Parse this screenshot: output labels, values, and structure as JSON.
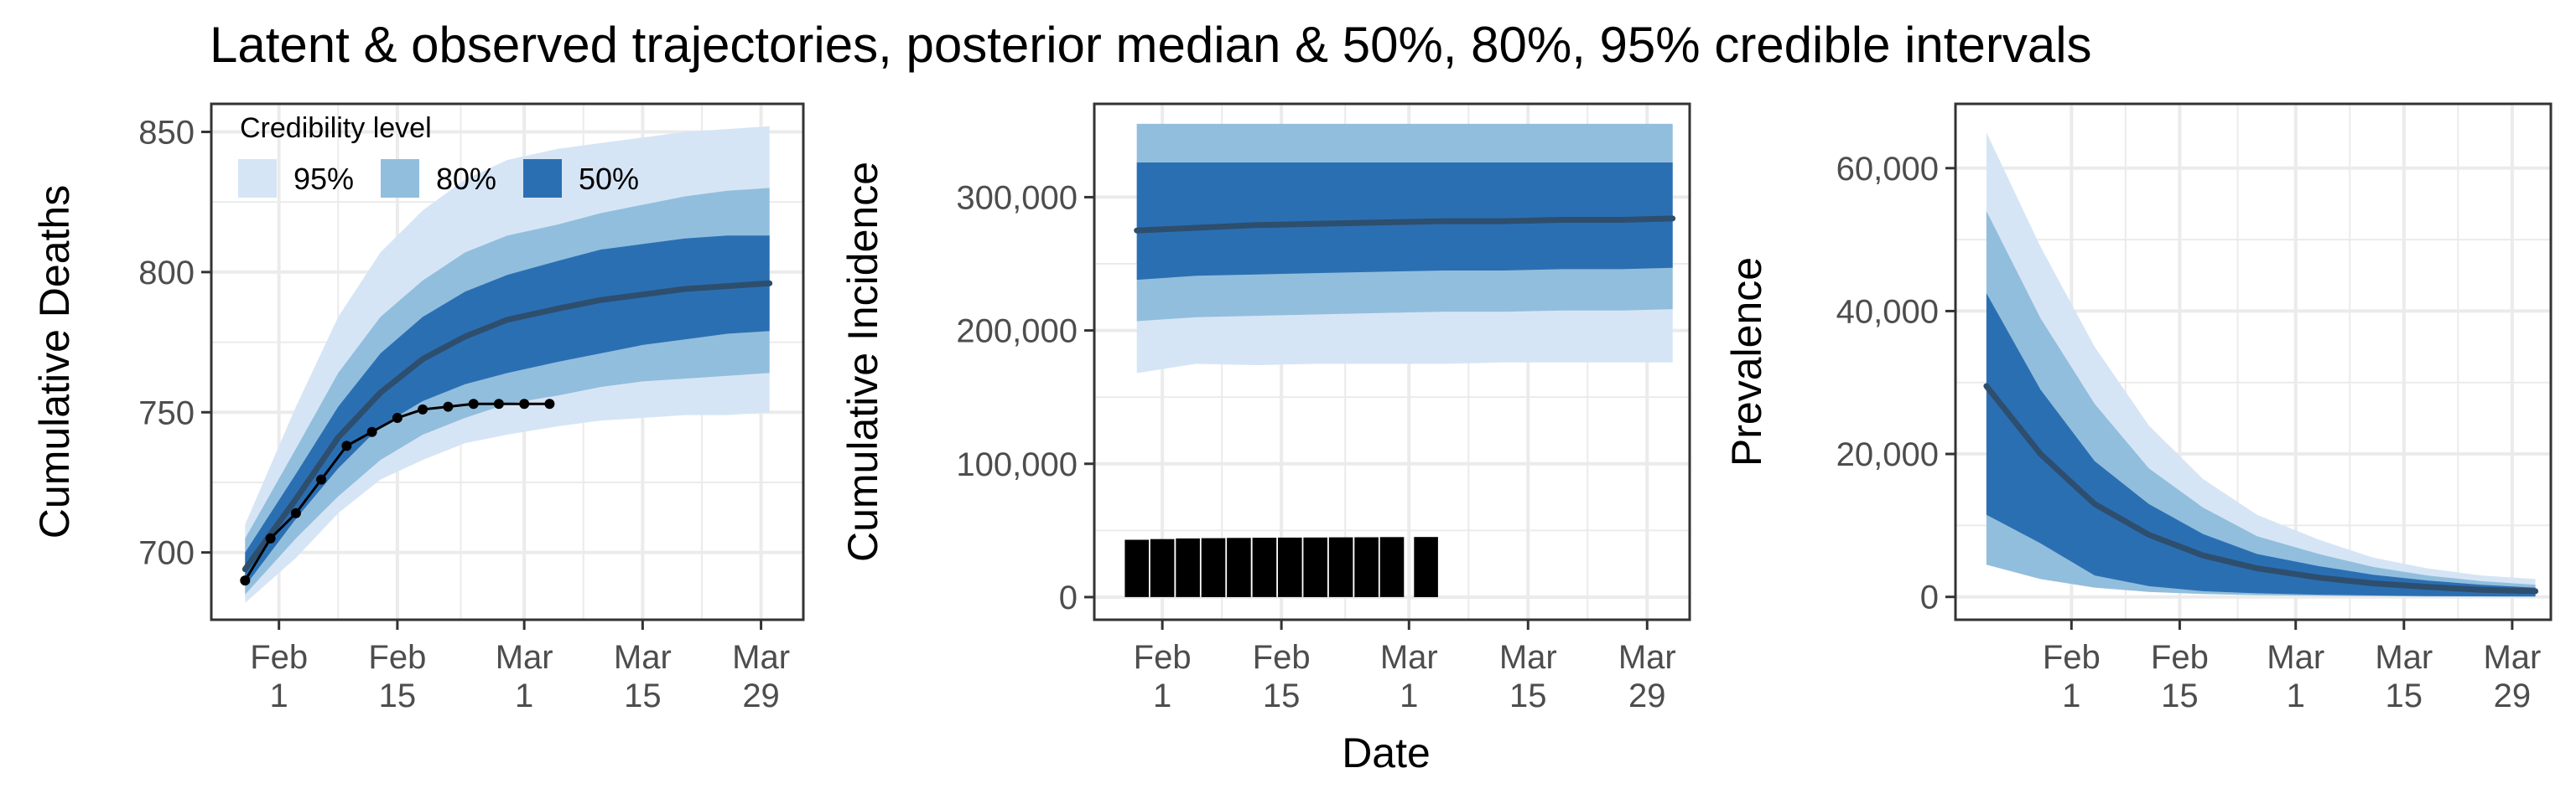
{
  "figure": {
    "title": "Latent & observed trajectories, posterior median & 50%, 80%, 95% credible intervals",
    "shared_xlabel": "Date"
  },
  "legend": {
    "title": "Credibility level",
    "items": [
      {
        "label": "95%",
        "color": "#d6e5f5"
      },
      {
        "label": "80%",
        "color": "#92bedd"
      },
      {
        "label": "50%",
        "color": "#2b6fb3"
      }
    ],
    "placement": "top-left inside first panel"
  },
  "colors": {
    "band95": "#d6e5f5",
    "band80": "#92bedd",
    "band50": "#2b6fb3",
    "median": "#2e4e6e",
    "observed": "#000000",
    "grid": "#ebebeb",
    "axis": "#333333"
  },
  "chart_data": [
    {
      "type": "line",
      "ylabel": "Cumulative Deaths",
      "xlabel": "",
      "x_ticks": [
        {
          "date": "Feb 1",
          "label": [
            "Feb",
            "1"
          ]
        },
        {
          "date": "Feb 15",
          "label": [
            "Feb",
            "15"
          ]
        },
        {
          "date": "Mar 1",
          "label": [
            "Mar",
            "1"
          ]
        },
        {
          "date": "Mar 15",
          "label": [
            "Mar",
            "15"
          ]
        },
        {
          "date": "Mar 29",
          "label": [
            "Mar",
            "29"
          ]
        }
      ],
      "xlim": [
        "Jan 24",
        "Apr 3"
      ],
      "ylim": [
        676,
        860
      ],
      "y_ticks": [
        {
          "value": 700,
          "label": "700"
        },
        {
          "value": 750,
          "label": "750"
        },
        {
          "value": 800,
          "label": "800"
        },
        {
          "value": 850,
          "label": "850"
        }
      ],
      "grid": true,
      "x": [
        "Jan 28",
        "Feb 3",
        "Feb 8",
        "Feb 13",
        "Feb 18",
        "Feb 23",
        "Feb 28",
        "Mar 5",
        "Mar 10",
        "Mar 15",
        "Mar 20",
        "Mar 25",
        "Mar 30"
      ],
      "bands": {
        "95": {
          "lower": [
            682,
            698,
            714,
            726,
            733,
            739,
            742,
            745,
            747,
            748,
            749,
            749,
            750
          ],
          "upper": [
            710,
            752,
            784,
            807,
            822,
            833,
            840,
            844,
            846,
            848,
            850,
            851,
            852
          ]
        },
        "80": {
          "lower": [
            685,
            705,
            720,
            733,
            742,
            748,
            753,
            756,
            759,
            761,
            762,
            763,
            764
          ],
          "upper": [
            705,
            737,
            764,
            784,
            797,
            807,
            813,
            817,
            821,
            824,
            827,
            829,
            830
          ]
        },
        "50": {
          "lower": [
            688,
            712,
            730,
            745,
            754,
            760,
            764,
            768,
            771,
            774,
            776,
            778,
            779
          ],
          "upper": [
            700,
            728,
            752,
            771,
            784,
            793,
            799,
            804,
            808,
            810,
            812,
            813,
            813
          ]
        }
      },
      "median": [
        694,
        719,
        741,
        757,
        769,
        777,
        783,
        787,
        790,
        792,
        794,
        795,
        796
      ],
      "observed": {
        "x": [
          "Jan 28",
          "Jan 31",
          "Feb 3",
          "Feb 6",
          "Feb 9",
          "Feb 12",
          "Feb 15",
          "Feb 18",
          "Feb 21",
          "Feb 24",
          "Feb 27",
          "Mar 1",
          "Mar 4"
        ],
        "y": [
          690,
          705,
          714,
          726,
          738,
          743,
          748,
          751,
          752,
          753,
          753,
          753,
          753
        ]
      }
    },
    {
      "type": "area",
      "ylabel": "Cumulative Incidence",
      "xlabel": "Date",
      "x_ticks": [
        {
          "date": "Feb 1",
          "label": [
            "Feb",
            "1"
          ]
        },
        {
          "date": "Feb 15",
          "label": [
            "Feb",
            "15"
          ]
        },
        {
          "date": "Mar 1",
          "label": [
            "Mar",
            "1"
          ]
        },
        {
          "date": "Mar 15",
          "label": [
            "Mar",
            "15"
          ]
        },
        {
          "date": "Mar 29",
          "label": [
            "Mar",
            "29"
          ]
        }
      ],
      "xlim": [
        "Jan 24",
        "Apr 3"
      ],
      "ylim": [
        -17000,
        370000
      ],
      "y_ticks": [
        {
          "value": 0,
          "label": "0"
        },
        {
          "value": 100000,
          "label": "100,000"
        },
        {
          "value": 200000,
          "label": "200,000"
        },
        {
          "value": 300000,
          "label": "300,000"
        }
      ],
      "grid": true,
      "x": [
        "Jan 29",
        "Feb 5",
        "Feb 12",
        "Feb 19",
        "Feb 26",
        "Mar 5",
        "Mar 12",
        "Mar 19",
        "Mar 26",
        "Apr 1"
      ],
      "bands": {
        "95": {
          "lower": [
            168000,
            175000,
            174000,
            175000,
            175000,
            175000,
            176000,
            176000,
            176000,
            176000
          ],
          "upper": [
            355000,
            355000,
            355000,
            355000,
            355000,
            355000,
            355000,
            355000,
            355000,
            355000
          ]
        },
        "80": {
          "lower": [
            207000,
            210000,
            211000,
            212000,
            213000,
            214000,
            214000,
            215000,
            215000,
            216000
          ],
          "upper": [
            355000,
            355000,
            355000,
            355000,
            355000,
            355000,
            355000,
            355000,
            355000,
            355000
          ]
        },
        "50": {
          "lower": [
            238000,
            241000,
            242000,
            243000,
            244000,
            245000,
            245000,
            246000,
            246000,
            247000
          ],
          "upper": [
            326000,
            326000,
            326000,
            326000,
            326000,
            326000,
            326000,
            326000,
            326000,
            326000
          ]
        }
      },
      "median": [
        275000,
        277000,
        279000,
        280000,
        281000,
        282000,
        282000,
        283000,
        283000,
        284000
      ],
      "observed_bars": {
        "x": [
          "Jan 29",
          "Feb 1",
          "Feb 4",
          "Feb 7",
          "Feb 10",
          "Feb 13",
          "Feb 16",
          "Feb 19",
          "Feb 22",
          "Feb 25",
          "Feb 28",
          "Mar 3"
        ],
        "y": [
          43000,
          43500,
          44000,
          44200,
          44400,
          44500,
          44600,
          44700,
          44800,
          44900,
          45000,
          45100
        ]
      }
    },
    {
      "type": "area",
      "ylabel": "Prevalence",
      "xlabel": "",
      "x_ticks": [
        {
          "date": "Feb 1",
          "label": [
            "Feb",
            "1"
          ]
        },
        {
          "date": "Feb 15",
          "label": [
            "Feb",
            "15"
          ]
        },
        {
          "date": "Mar 1",
          "label": [
            "Mar",
            "1"
          ]
        },
        {
          "date": "Mar 15",
          "label": [
            "Mar",
            "15"
          ]
        },
        {
          "date": "Mar 29",
          "label": [
            "Mar",
            "29"
          ]
        }
      ],
      "xlim": [
        "Jan 17",
        "Apr 3"
      ],
      "ylim": [
        -3200,
        69000
      ],
      "y_ticks": [
        {
          "value": 0,
          "label": "0"
        },
        {
          "value": 20000,
          "label": "20,000"
        },
        {
          "value": 40000,
          "label": "40,000"
        },
        {
          "value": 60000,
          "label": "60,000"
        }
      ],
      "grid": true,
      "x": [
        "Jan 21",
        "Jan 28",
        "Feb 4",
        "Feb 11",
        "Feb 18",
        "Feb 25",
        "Mar 4",
        "Mar 11",
        "Mar 18",
        "Mar 25",
        "Apr 1"
      ],
      "bands": {
        "95": {
          "lower": [
            4500,
            2500,
            1300,
            700,
            400,
            250,
            150,
            100,
            60,
            40,
            30
          ],
          "upper": [
            65000,
            49000,
            35000,
            24000,
            16500,
            11500,
            8000,
            5500,
            4000,
            3000,
            2500
          ]
        },
        "80": {
          "lower": [
            4500,
            2500,
            1300,
            700,
            400,
            250,
            150,
            100,
            60,
            40,
            30
          ],
          "upper": [
            54000,
            39000,
            27000,
            18000,
            12500,
            8500,
            6000,
            4200,
            3000,
            2200,
            1700
          ]
        },
        "50": {
          "lower": [
            11500,
            7500,
            3000,
            1500,
            800,
            500,
            300,
            200,
            120,
            80,
            60
          ],
          "upper": [
            42500,
            29000,
            19000,
            13000,
            8800,
            6000,
            4300,
            3100,
            2300,
            1700,
            1300
          ]
        }
      },
      "median": [
        29500,
        20000,
        13000,
        8700,
        5800,
        4000,
        2700,
        1900,
        1400,
        1000,
        800
      ]
    }
  ]
}
